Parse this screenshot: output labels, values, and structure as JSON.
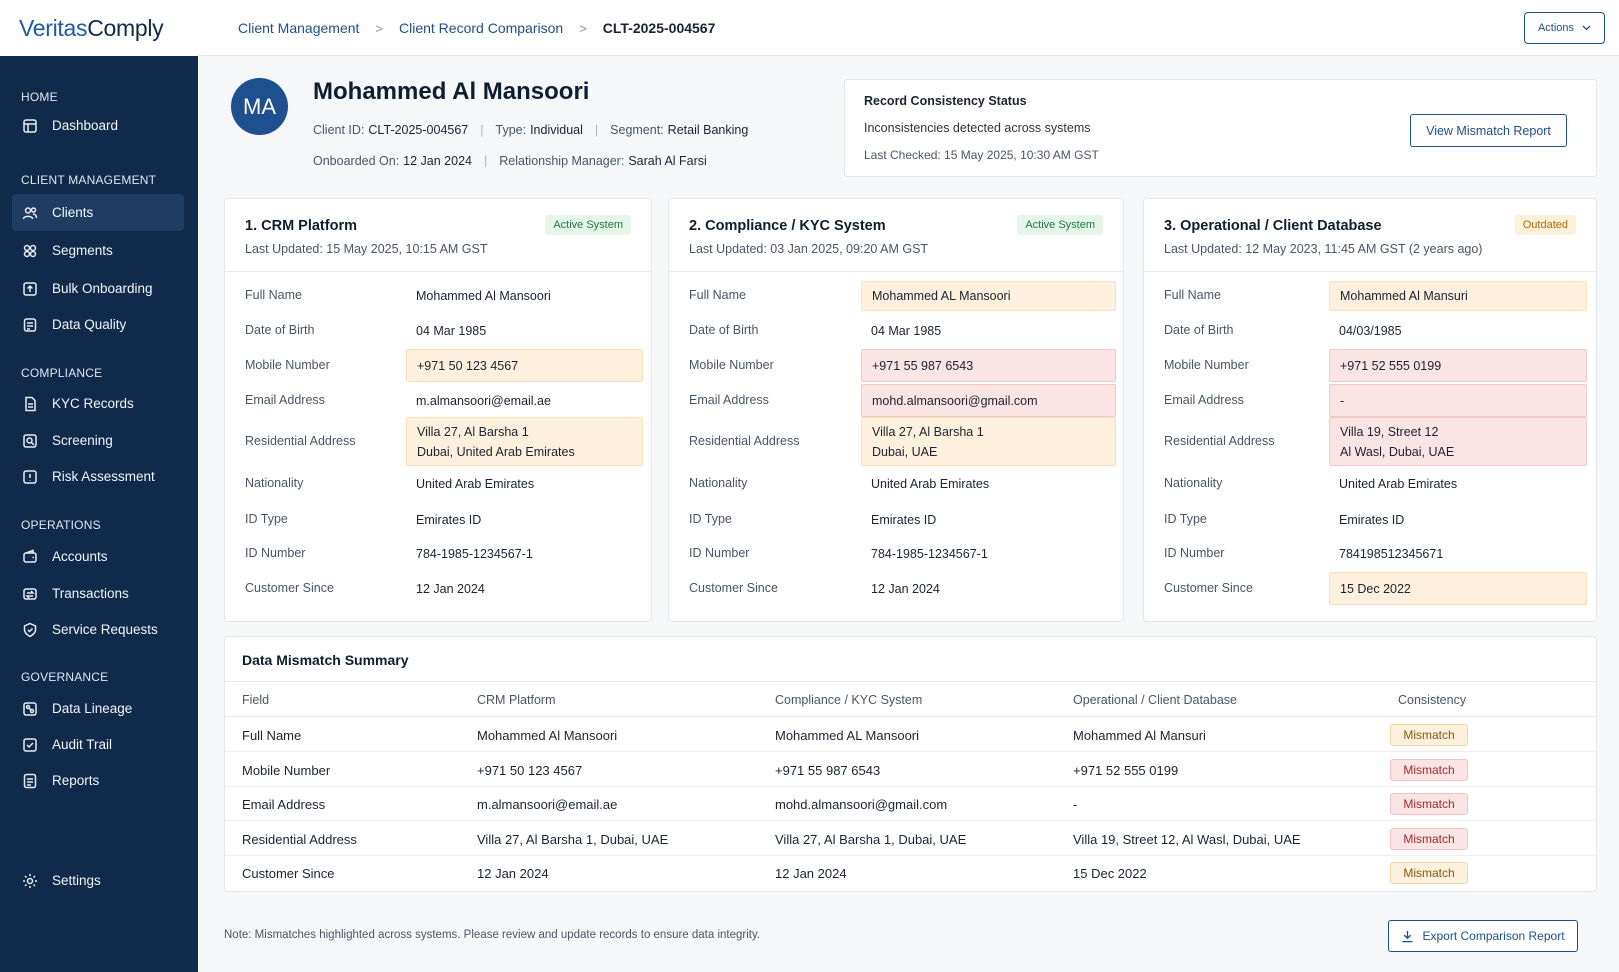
{
  "app": {
    "logo_part1": "Veritas",
    "logo_part2": "Comply"
  },
  "sidebar": {
    "sections": [
      {
        "label": "HOME"
      },
      {
        "label": "CLIENT MANAGEMENT"
      },
      {
        "label": "COMPLIANCE"
      },
      {
        "label": "OPERATIONS"
      },
      {
        "label": "GOVERNANCE"
      }
    ],
    "items": [
      {
        "label": "Dashboard",
        "icon": "dashboard-icon"
      },
      {
        "label": "Clients",
        "icon": "users-icon",
        "active": true
      },
      {
        "label": "Segments",
        "icon": "segments-icon"
      },
      {
        "label": "Bulk Onboarding",
        "icon": "upload-icon"
      },
      {
        "label": "Data Quality",
        "icon": "data-quality-icon"
      },
      {
        "label": "KYC Records",
        "icon": "document-icon"
      },
      {
        "label": "Screening",
        "icon": "screening-icon"
      },
      {
        "label": "Risk Assessment",
        "icon": "risk-icon"
      },
      {
        "label": "Accounts",
        "icon": "wallet-icon"
      },
      {
        "label": "Transactions",
        "icon": "transactions-icon"
      },
      {
        "label": "Service Requests",
        "icon": "shield-icon"
      },
      {
        "label": "Data Lineage",
        "icon": "lineage-icon"
      },
      {
        "label": "Audit Trail",
        "icon": "audit-icon"
      },
      {
        "label": "Reports",
        "icon": "reports-icon"
      },
      {
        "label": "Settings",
        "icon": "gear-icon"
      }
    ]
  },
  "breadcrumb": {
    "items": [
      "Client Management",
      "Client Record Comparison"
    ],
    "current": "CLT-2025-004567",
    "separator": ">"
  },
  "topbar": {
    "actions_label": "Actions"
  },
  "client": {
    "initials": "MA",
    "name": "Mohammed Al Mansoori",
    "id_label": "Client ID:",
    "id": "CLT-2025-004567",
    "type_label": "Type:",
    "type": "Individual",
    "segment_label": "Segment:",
    "segment": "Retail Banking",
    "onboarded_label": "Onboarded On:",
    "onboarded": "12 Jan 2024",
    "rm_label": "Relationship Manager:",
    "rm": "Sarah Al Farsi",
    "sep": "|"
  },
  "status": {
    "title": "Record Consistency Status",
    "message": "Inconsistencies detected across systems",
    "last_checked": "Last Checked: 15 May 2025, 10:30 AM GST",
    "button": "View Mismatch Report"
  },
  "systems": [
    {
      "title": "1. CRM Platform",
      "updated": "Last Updated: 15 May 2025, 10:15 AM GST",
      "badge": "Active System",
      "badge_type": "active",
      "fields": [
        {
          "label": "Full Name",
          "value": "Mohammed Al Mansoori",
          "hl": ""
        },
        {
          "label": "Date of Birth",
          "value": "04 Mar 1985",
          "hl": ""
        },
        {
          "label": "Mobile Number",
          "value": "+971 50 123 4567",
          "hl": "y"
        },
        {
          "label": "Email Address",
          "value": "m.almansoori@email.ae",
          "hl": ""
        },
        {
          "label": "Residential Address",
          "value": "Villa 27, Al Barsha 1",
          "value2": "Dubai, United Arab Emirates",
          "hl": "y"
        },
        {
          "label": "Nationality",
          "value": "United Arab Emirates",
          "hl": ""
        },
        {
          "label": "ID Type",
          "value": "Emirates ID",
          "hl": ""
        },
        {
          "label": "ID Number",
          "value": "784-1985-1234567-1",
          "hl": ""
        },
        {
          "label": "Customer Since",
          "value": "12 Jan 2024",
          "hl": ""
        }
      ]
    },
    {
      "title": "2. Compliance / KYC System",
      "updated": "Last Updated: 03 Jan 2025, 09:20 AM GST",
      "badge": "Active System",
      "badge_type": "active",
      "fields": [
        {
          "label": "Full Name",
          "value": "Mohammed AL Mansoori",
          "hl": "y"
        },
        {
          "label": "Date of Birth",
          "value": "04 Mar 1985",
          "hl": ""
        },
        {
          "label": "Mobile Number",
          "value": "+971 55 987 6543",
          "hl": "r"
        },
        {
          "label": "Email Address",
          "value": "mohd.almansoori@gmail.com",
          "hl": "r"
        },
        {
          "label": "Residential Address",
          "value": "Villa 27, Al Barsha 1",
          "value2": "Dubai, UAE",
          "hl": "y"
        },
        {
          "label": "Nationality",
          "value": "United Arab Emirates",
          "hl": ""
        },
        {
          "label": "ID Type",
          "value": "Emirates ID",
          "hl": ""
        },
        {
          "label": "ID Number",
          "value": "784-1985-1234567-1",
          "hl": ""
        },
        {
          "label": "Customer Since",
          "value": "12 Jan 2024",
          "hl": ""
        }
      ]
    },
    {
      "title": "3. Operational / Client Database",
      "updated": "Last Updated: 12 May 2023, 11:45 AM GST (2 years ago)",
      "badge": "Outdated",
      "badge_type": "outdated",
      "fields": [
        {
          "label": "Full Name",
          "value": "Mohammed Al Mansuri",
          "hl": "y"
        },
        {
          "label": "Date of Birth",
          "value": "04/03/1985",
          "hl": ""
        },
        {
          "label": "Mobile Number",
          "value": "+971 52 555 0199",
          "hl": "r"
        },
        {
          "label": "Email Address",
          "value": "-",
          "hl": "r"
        },
        {
          "label": "Residential Address",
          "value": "Villa 19, Street 12",
          "value2": "Al Wasl, Dubai, UAE",
          "hl": "r"
        },
        {
          "label": "Nationality",
          "value": "United Arab Emirates",
          "hl": ""
        },
        {
          "label": "ID Type",
          "value": "Emirates ID",
          "hl": ""
        },
        {
          "label": "ID Number",
          "value": "784198512345671",
          "hl": ""
        },
        {
          "label": "Customer Since",
          "value": "15 Dec 2022",
          "hl": "y"
        }
      ]
    }
  ],
  "summary": {
    "title": "Data Mismatch Summary",
    "columns": [
      "Field",
      "CRM Platform",
      "Compliance / KYC System",
      "Operational / Client Database",
      "Consistency"
    ],
    "rows": [
      {
        "field": "Full Name",
        "crm": "Mohammed Al Mansoori",
        "kyc": "Mohammed AL Mansoori",
        "ops": "Mohammed Al Mansuri",
        "status": "Mismatch",
        "level": "y"
      },
      {
        "field": "Mobile Number",
        "crm": "+971 50 123 4567",
        "kyc": "+971 55 987 6543",
        "ops": "+971 52 555 0199",
        "status": "Mismatch",
        "level": "r"
      },
      {
        "field": "Email Address",
        "crm": "m.almansoori@email.ae",
        "kyc": "mohd.almansoori@gmail.com",
        "ops": "-",
        "status": "Mismatch",
        "level": "r"
      },
      {
        "field": "Residential Address",
        "crm": "Villa 27, Al Barsha 1, Dubai, UAE",
        "kyc": "Villa 27, Al Barsha 1, Dubai, UAE",
        "ops": "Villa 19, Street 12, Al Wasl, Dubai, UAE",
        "status": "Mismatch",
        "level": "r"
      },
      {
        "field": "Customer Since",
        "crm": "12 Jan 2024",
        "kyc": "12 Jan 2024",
        "ops": "15 Dec 2022",
        "status": "Mismatch",
        "level": "y"
      }
    ]
  },
  "footer": {
    "note": "Note: Mismatches highlighted across systems. Please review and update records to ensure data integrity.",
    "export_label": "Export Comparison Report"
  }
}
